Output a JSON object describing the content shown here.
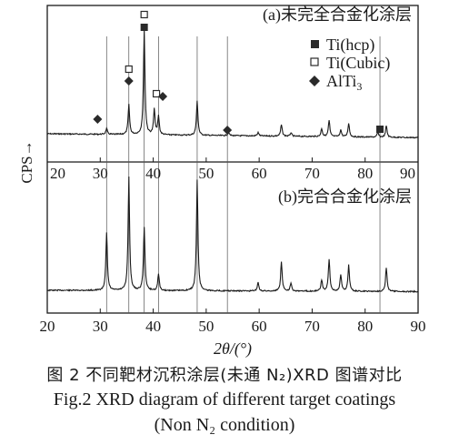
{
  "chart_data": {
    "type": "line",
    "xlabel": "2θ/(°)",
    "ylabel": "CPS→",
    "xlim": [
      20,
      90
    ],
    "x_ticks": [
      "20",
      "30",
      "40",
      "50",
      "60",
      "70",
      "80",
      "90"
    ],
    "panels": [
      {
        "label": "(a)未完全合金化涂层",
        "peaks": [
          {
            "x": 31.2,
            "h": 0.05
          },
          {
            "x": 35.4,
            "h": 0.26
          },
          {
            "x": 38.3,
            "h": 0.92
          },
          {
            "x": 40.2,
            "h": 0.22
          },
          {
            "x": 41.0,
            "h": 0.16
          },
          {
            "x": 48.3,
            "h": 0.3
          },
          {
            "x": 54.2,
            "h": 0.03
          },
          {
            "x": 59.8,
            "h": 0.03
          },
          {
            "x": 64.2,
            "h": 0.1
          },
          {
            "x": 66.0,
            "h": 0.03
          },
          {
            "x": 71.8,
            "h": 0.07
          },
          {
            "x": 73.2,
            "h": 0.14
          },
          {
            "x": 75.4,
            "h": 0.06
          },
          {
            "x": 76.9,
            "h": 0.12
          },
          {
            "x": 82.4,
            "h": 0.04
          },
          {
            "x": 84.0,
            "h": 0.1
          }
        ],
        "markers": [
          {
            "phase": "Ti(hcp)",
            "x": 38.3
          },
          {
            "phase": "Ti(hcp)",
            "x": 82.8
          },
          {
            "phase": "Ti(Cubic)",
            "x": 35.4
          },
          {
            "phase": "Ti(Cubic)",
            "x": 38.3
          },
          {
            "phase": "Ti(Cubic)",
            "x": 40.6
          },
          {
            "phase": "AlTi3",
            "x": 29.5
          },
          {
            "phase": "AlTi3",
            "x": 35.4
          },
          {
            "phase": "AlTi3",
            "x": 41.8
          },
          {
            "phase": "AlTi3",
            "x": 54.0
          }
        ]
      },
      {
        "label": "(b)完合合金化涂层",
        "peaks": [
          {
            "x": 31.2,
            "h": 0.42
          },
          {
            "x": 35.4,
            "h": 0.82
          },
          {
            "x": 38.3,
            "h": 0.46
          },
          {
            "x": 41.0,
            "h": 0.12
          },
          {
            "x": 48.3,
            "h": 0.8
          },
          {
            "x": 59.8,
            "h": 0.06
          },
          {
            "x": 64.2,
            "h": 0.21
          },
          {
            "x": 66.0,
            "h": 0.06
          },
          {
            "x": 71.8,
            "h": 0.08
          },
          {
            "x": 73.2,
            "h": 0.23
          },
          {
            "x": 75.4,
            "h": 0.12
          },
          {
            "x": 76.9,
            "h": 0.19
          },
          {
            "x": 84.0,
            "h": 0.17
          }
        ]
      }
    ],
    "legend": {
      "placement": "top-right",
      "entries": [
        {
          "symbol": "filled-square",
          "text": "Ti(hcp)"
        },
        {
          "symbol": "open-square",
          "text": "Ti(Cubic)"
        },
        {
          "symbol": "filled-diamond",
          "text": "AlTi",
          "sub": "3"
        }
      ]
    },
    "guide_lines_x": [
      31.2,
      35.4,
      38.3,
      41.0,
      48.3,
      54.0,
      82.8
    ]
  },
  "caption": {
    "chinese": "图 2  不同靶材沉积涂层(未通 N₂)XRD 图谱对比",
    "english_line1": "Fig.2  XRD diagram of different target coatings",
    "english_line2": "(Non N₂ condition)"
  },
  "colors": {
    "line": "#1a1a1a",
    "marker": "#2a2a2a"
  }
}
